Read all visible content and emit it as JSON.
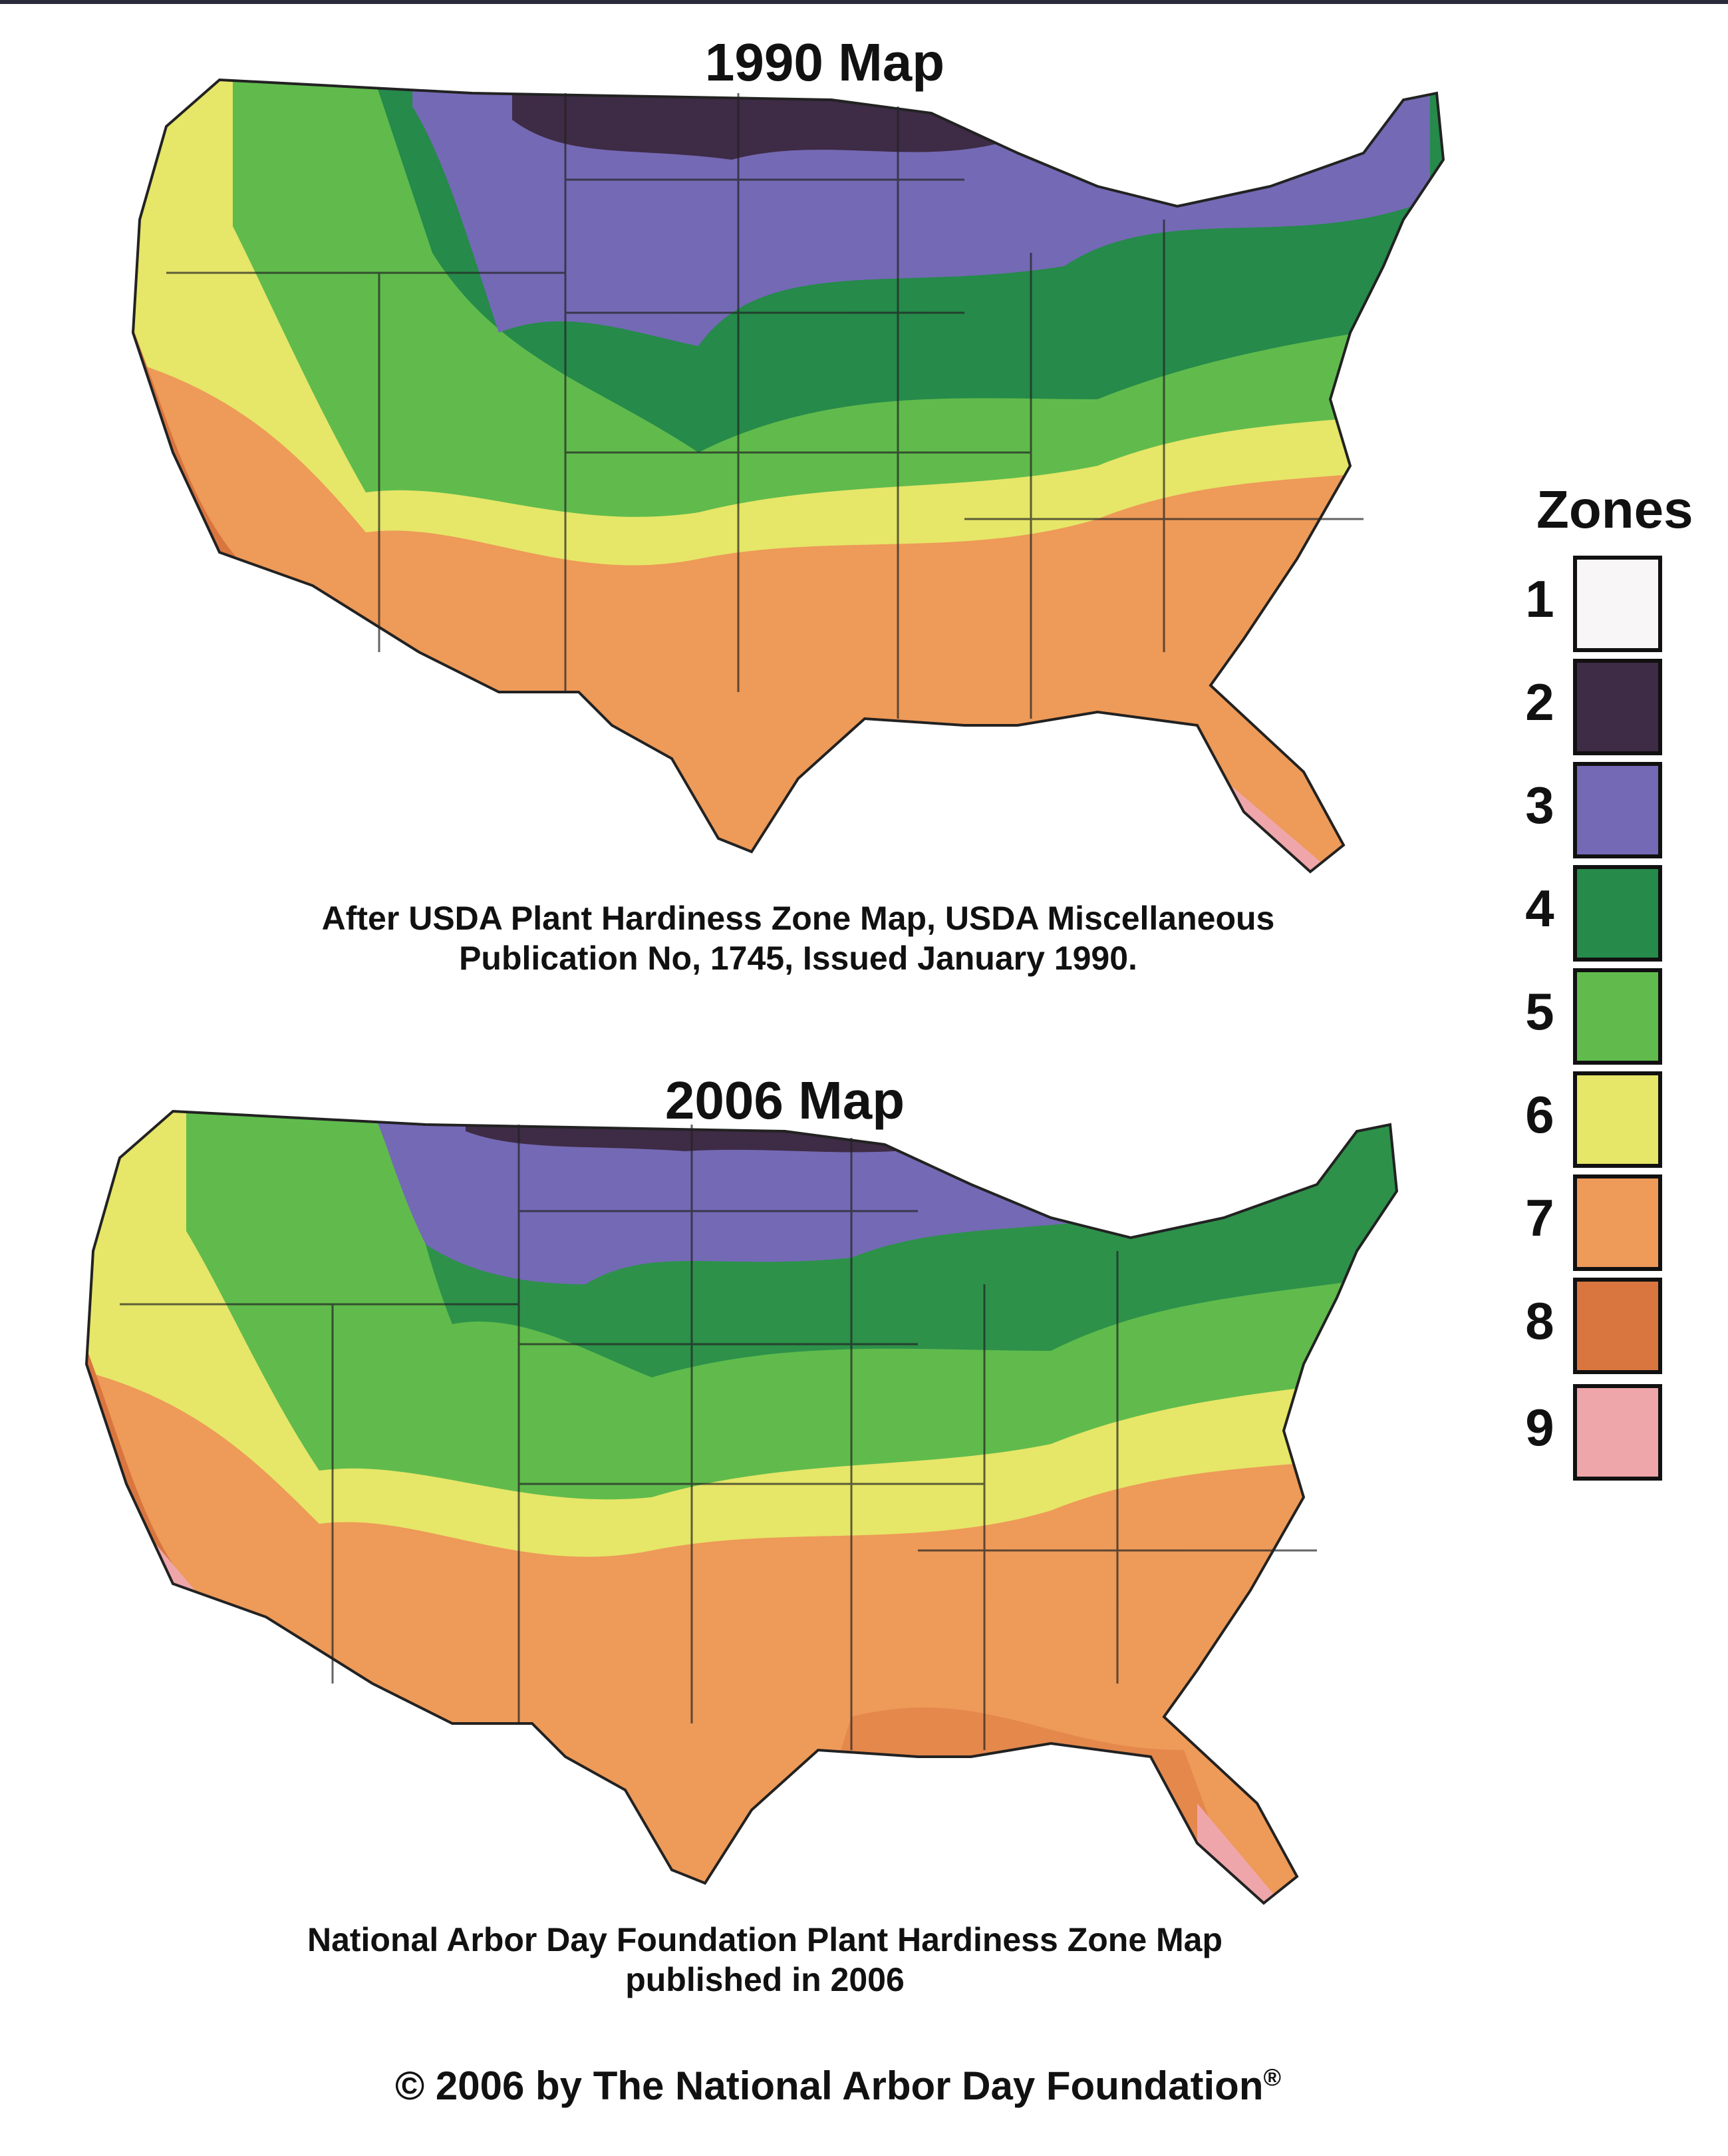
{
  "maps": [
    {
      "title": "1990 Map",
      "caption_line1": "After USDA Plant Hardiness Zone Map, USDA Miscellaneous",
      "caption_line2": "Publication No, 1745, Issued January 1990."
    },
    {
      "title": "2006 Map",
      "caption_line1": "National Arbor Day Foundation Plant Hardiness Zone Map",
      "caption_line2": "published in 2006"
    }
  ],
  "legend": {
    "title": "Zones",
    "zones": [
      {
        "label": "1",
        "color": "#f8f6f6"
      },
      {
        "label": "2",
        "color": "#3e2b45"
      },
      {
        "label": "3",
        "color": "#7469b5"
      },
      {
        "label": "4",
        "color": "#258a4a"
      },
      {
        "label": "5",
        "color": "#60bb4c"
      },
      {
        "label": "6",
        "color": "#e6e668"
      },
      {
        "label": "7",
        "color": "#ee9a58"
      },
      {
        "label": "8",
        "color": "#d9753f"
      },
      {
        "label": "9",
        "color": "#efa6aa"
      }
    ]
  },
  "footer": {
    "symbol": "©",
    "text": "2006 by The National Arbor Day Foundation",
    "mark": "®"
  }
}
